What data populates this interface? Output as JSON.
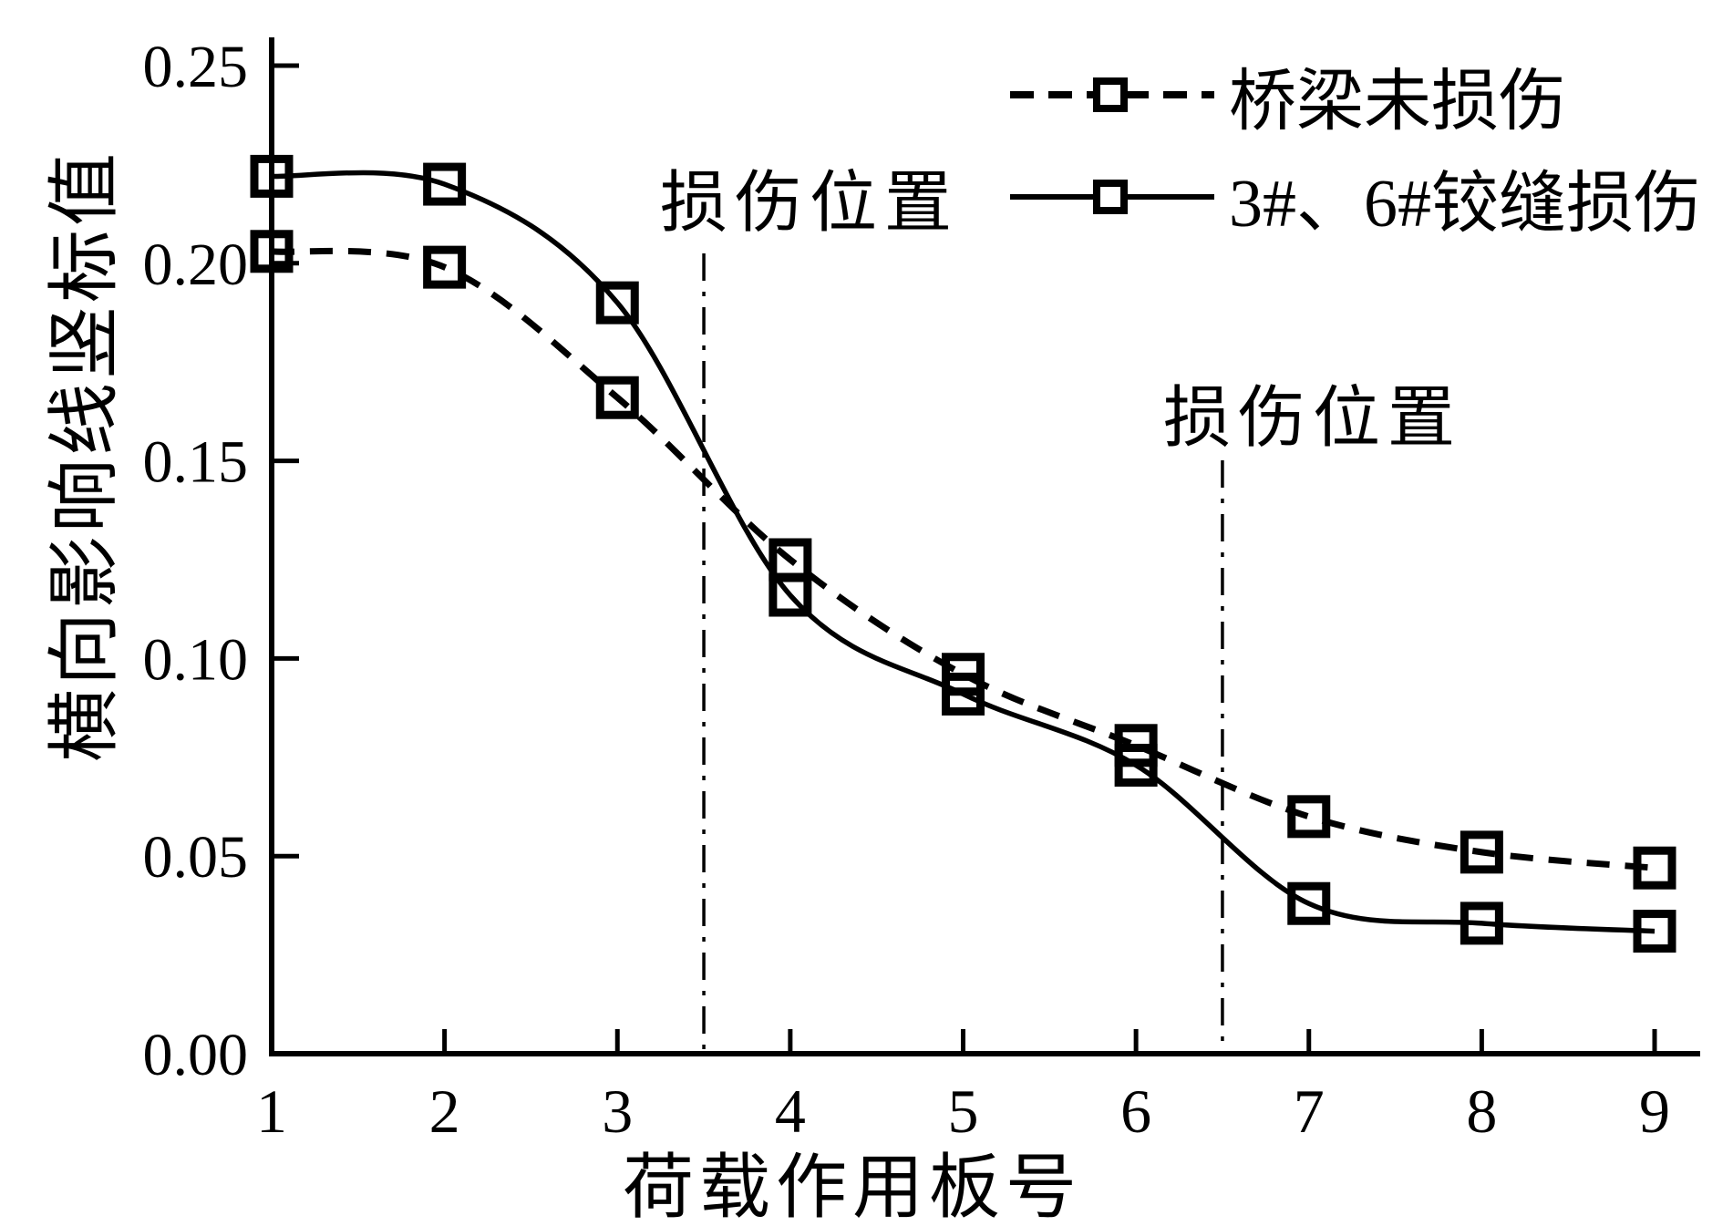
{
  "figure": {
    "background_color": "#ffffff",
    "ink_color": "#000000"
  },
  "chart_data": {
    "type": "line",
    "title": "",
    "xlabel": "荷载作用板号",
    "ylabel": "横向影响线竖标值",
    "x": [
      1,
      2,
      3,
      4,
      5,
      6,
      7,
      8,
      9
    ],
    "series": [
      {
        "name": "桥梁未损伤",
        "style": "dashed",
        "marker": "open-square",
        "color": "#000000",
        "values": [
          0.203,
          0.199,
          0.166,
          0.125,
          0.096,
          0.078,
          0.06,
          0.051,
          0.047
        ]
      },
      {
        "name": "3#、6#铰缝损伤",
        "style": "solid",
        "marker": "open-square",
        "color": "#000000",
        "values": [
          0.222,
          0.22,
          0.19,
          0.116,
          0.091,
          0.073,
          0.038,
          0.033,
          0.031
        ]
      }
    ],
    "xlim": [
      1,
      9
    ],
    "ylim": [
      0,
      0.25
    ],
    "x_ticks": [
      "1",
      "2",
      "3",
      "4",
      "5",
      "6",
      "7",
      "8",
      "9"
    ],
    "y_ticks": [
      "0.00",
      "0.05",
      "0.10",
      "0.15",
      "0.20",
      "0.25"
    ],
    "grid": false,
    "legend_position": "top-right",
    "annotations": [
      {
        "text": "损伤位置",
        "x": 3.5
      },
      {
        "text": "损伤位置",
        "x": 6.5
      }
    ]
  }
}
